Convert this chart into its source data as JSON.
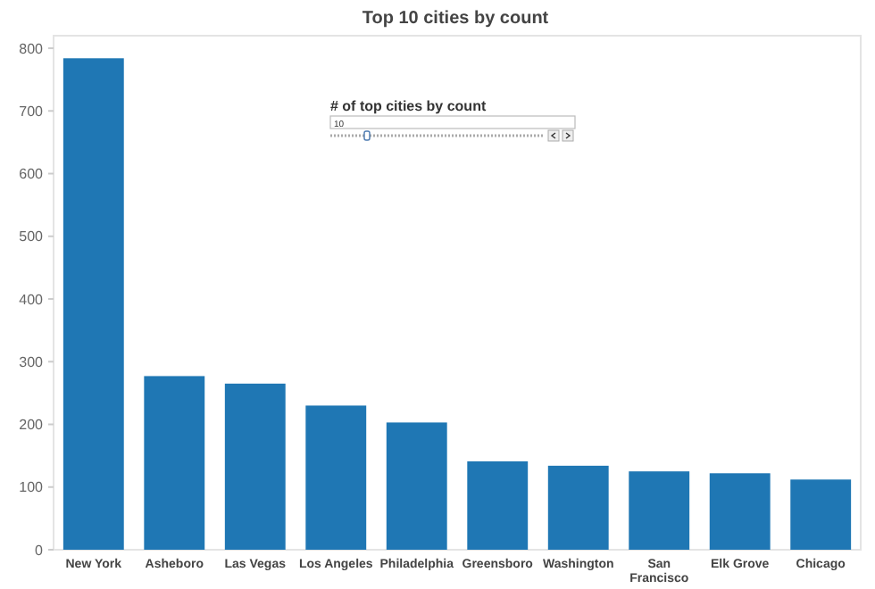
{
  "chart_data": {
    "type": "bar",
    "title": "Top 10 cities by count",
    "categories": [
      "New York",
      "Asheboro",
      "Las Vegas",
      "Los Angeles",
      "Philadelphia",
      "Greensboro",
      "Washington",
      "San Francisco",
      "Elk Grove",
      "Chicago"
    ],
    "values": [
      784,
      277,
      265,
      230,
      203,
      141,
      134,
      125,
      122,
      112
    ],
    "color": "#1f77b4",
    "ylim": [
      0,
      820
    ],
    "yticks": [
      0,
      100,
      200,
      300,
      400,
      500,
      600,
      700,
      800
    ],
    "annotations": [
      "# of top cities by count",
      "10"
    ]
  }
}
